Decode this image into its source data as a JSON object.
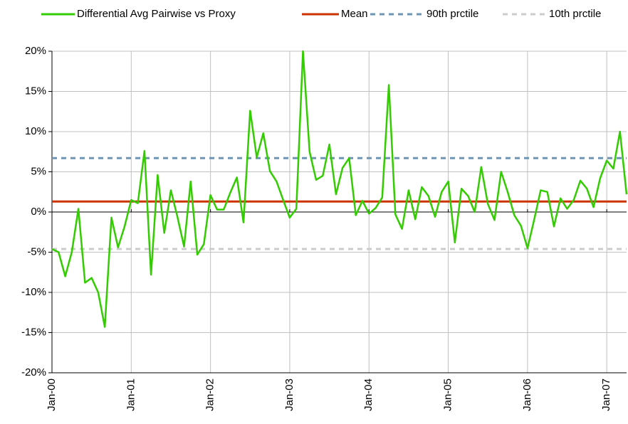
{
  "chart_data": {
    "type": "line",
    "categories": [
      "Jan-00",
      null,
      null,
      null,
      null,
      null,
      null,
      null,
      null,
      null,
      null,
      null,
      "Jan-01",
      null,
      null,
      null,
      null,
      null,
      null,
      null,
      null,
      null,
      null,
      null,
      "Jan-02",
      null,
      null,
      null,
      null,
      null,
      null,
      null,
      null,
      null,
      null,
      null,
      "Jan-03",
      null,
      null,
      null,
      null,
      null,
      null,
      null,
      null,
      null,
      null,
      null,
      "Jan-04",
      null,
      null,
      null,
      null,
      null,
      null,
      null,
      null,
      null,
      null,
      null,
      "Jan-05",
      null,
      null,
      null,
      null,
      null,
      null,
      null,
      null,
      null,
      null,
      null,
      "Jan-06",
      null,
      null,
      null,
      null,
      null,
      null,
      null,
      null,
      null,
      null,
      null,
      "Jan-07",
      null,
      null,
      null
    ],
    "series": [
      {
        "name": "Differential Avg Pairwise vs Proxy",
        "color": "#33cc00",
        "values": [
          -4.6,
          -5.0,
          -8.0,
          -5.0,
          0.4,
          -8.8,
          -8.2,
          -10.0,
          -14.3,
          -0.7,
          -4.4,
          -1.8,
          1.5,
          1.1,
          7.6,
          -7.8,
          4.6,
          -2.6,
          2.7,
          -0.6,
          -4.3,
          3.8,
          -5.3,
          -4.0,
          2.1,
          0.3,
          0.3,
          2.4,
          4.3,
          -1.3,
          12.6,
          6.8,
          9.8,
          5.1,
          3.8,
          1.5,
          -0.7,
          0.4,
          20.0,
          7.5,
          4.0,
          4.5,
          8.4,
          2.2,
          5.5,
          6.7,
          -0.4,
          1.4,
          -0.2,
          0.5,
          1.8,
          15.8,
          -0.3,
          -2.1,
          2.7,
          -0.9,
          3.1,
          2.0,
          -0.6,
          2.5,
          3.8,
          -3.8,
          2.9,
          2.0,
          0.0,
          5.6,
          1.0,
          -1.0,
          5.0,
          2.5,
          -0.4,
          -1.7,
          -4.5,
          -1.0,
          2.7,
          2.5,
          -1.8,
          1.7,
          0.4,
          1.5,
          3.9,
          2.9,
          0.6,
          4.2,
          6.4,
          5.4,
          10.0,
          2.2
        ]
      }
    ],
    "reference_lines": [
      {
        "name": "Mean",
        "value": 1.3,
        "color": "#cc3300",
        "dashed": false
      },
      {
        "name": "90th prctile",
        "value": 6.7,
        "color": "#6f95b5",
        "dashed": true
      },
      {
        "name": "10th prctile",
        "value": -4.6,
        "color": "#cccccc",
        "dashed": true
      }
    ],
    "ylim": [
      -20,
      20
    ],
    "yticks": [
      {
        "value": -20,
        "label": "-20%"
      },
      {
        "value": -15,
        "label": "-15%"
      },
      {
        "value": -10,
        "label": "-10%"
      },
      {
        "value": -5,
        "label": "-5%"
      },
      {
        "value": 0,
        "label": "0%"
      },
      {
        "value": 5,
        "label": "5%"
      },
      {
        "value": 10,
        "label": "10%"
      },
      {
        "value": 15,
        "label": "15%"
      },
      {
        "value": 20,
        "label": "20%"
      }
    ],
    "grid": true
  }
}
